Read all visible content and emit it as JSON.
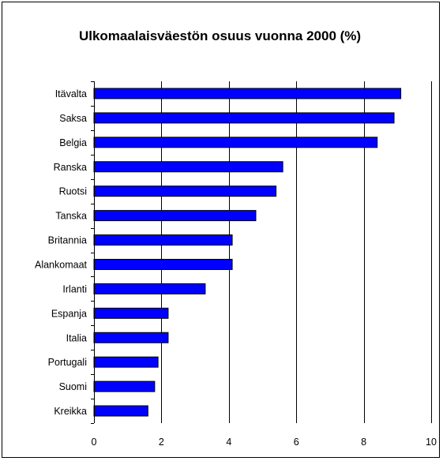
{
  "chart_data": {
    "type": "bar",
    "orientation": "horizontal",
    "title": "Ulkomaalaisväestön osuus vuonna 2000 (%)",
    "categories": [
      "Itävalta",
      "Saksa",
      "Belgia",
      "Ranska",
      "Ruotsi",
      "Tanska",
      "Britannia",
      "Alankomaat",
      "Irlanti",
      "Espanja",
      "Italia",
      "Portugali",
      "Suomi",
      "Kreikka"
    ],
    "values": [
      9.1,
      8.9,
      8.4,
      5.6,
      5.4,
      4.8,
      4.1,
      4.1,
      3.3,
      2.2,
      2.2,
      1.9,
      1.8,
      1.6
    ],
    "xlim": [
      0,
      10
    ],
    "xticks": [
      0,
      2,
      4,
      6,
      8,
      10
    ],
    "grid": "vertical",
    "legend": "none",
    "bar_color": "#0000ff"
  }
}
